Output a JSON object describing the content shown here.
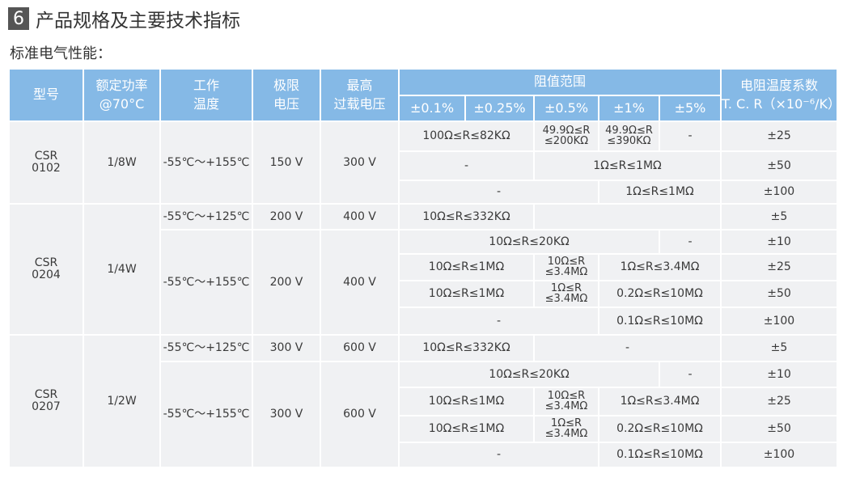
{
  "title": {
    "number": "6",
    "text": "产品规格及主要技术指标"
  },
  "subtitle": "标准电气性能：",
  "header": {
    "model": "型号",
    "power_1": "额定功率",
    "power_2": "@70°C",
    "temp_1": "工作",
    "temp_2": "温度",
    "limit_1": "极限",
    "limit_2": "电压",
    "overload_1": "最高",
    "overload_2": "过载电压",
    "range": "阻值范围",
    "tolerances": [
      "±0.1%",
      "±0.25%",
      "±0.5%",
      "±1%",
      "±5%"
    ],
    "tcr_1": "电阻温度系数",
    "tcr_2": "T. C. R（×10⁻⁶/K）"
  },
  "groups": [
    {
      "model": "CSR\n0102",
      "power": "1/8W",
      "subgroups": [
        {
          "temp": "-55℃～+155℃",
          "limit_v": "150 V",
          "overload_v": "300 V",
          "rows": [
            {
              "tcr": "±25",
              "cells": [
                {
                  "t": "100Ω≤R≤82KΩ",
                  "s": 2
                },
                {
                  "t": "49.9Ω≤R\n≤200KΩ",
                  "s": 1
                },
                {
                  "t": "49.9Ω≤R\n≤390KΩ",
                  "s": 1
                },
                {
                  "t": "-",
                  "s": 1
                }
              ]
            },
            {
              "tcr": "±50",
              "cells": [
                {
                  "t": "-",
                  "s": 2
                },
                {
                  "t": "1Ω≤R≤1MΩ",
                  "s": 3
                }
              ]
            },
            {
              "tcr": "±100",
              "cells": [
                {
                  "t": "-",
                  "s": 3
                },
                {
                  "t": "1Ω≤R≤1MΩ",
                  "s": 2
                }
              ]
            }
          ]
        }
      ]
    },
    {
      "model": "CSR\n0204",
      "power": "1/4W",
      "subgroups": [
        {
          "temp": "-55℃～+125℃",
          "limit_v": "200 V",
          "overload_v": "400 V",
          "rows": [
            {
              "tcr": "±5",
              "cells": [
                {
                  "t": "10Ω≤R≤332KΩ",
                  "s": 2
                },
                {
                  "t": "",
                  "s": 3
                }
              ]
            }
          ]
        },
        {
          "temp": "-55℃～+155℃",
          "limit_v": "200 V",
          "overload_v": "400 V",
          "rows": [
            {
              "tcr": "±10",
              "cells": [
                {
                  "t": "10Ω≤R≤20KΩ",
                  "s": 4
                },
                {
                  "t": "-",
                  "s": 1
                }
              ]
            },
            {
              "tcr": "±25",
              "cells": [
                {
                  "t": "10Ω≤R≤1MΩ",
                  "s": 2
                },
                {
                  "t": "10Ω≤R\n≤3.4MΩ",
                  "s": 1
                },
                {
                  "t": "1Ω≤R≤3.4MΩ",
                  "s": 2
                }
              ]
            },
            {
              "tcr": "±50",
              "cells": [
                {
                  "t": "10Ω≤R≤1MΩ",
                  "s": 2
                },
                {
                  "t": "1Ω≤R\n≤3.4MΩ",
                  "s": 1
                },
                {
                  "t": "0.2Ω≤R≤10MΩ",
                  "s": 2
                }
              ]
            },
            {
              "tcr": "±100",
              "cells": [
                {
                  "t": "-",
                  "s": 3
                },
                {
                  "t": "0.1Ω≤R≤10MΩ",
                  "s": 2
                }
              ]
            }
          ]
        }
      ]
    },
    {
      "model": "CSR\n0207",
      "power": "1/2W",
      "subgroups": [
        {
          "temp": "-55℃～+125℃",
          "limit_v": "300 V",
          "overload_v": "600 V",
          "rows": [
            {
              "tcr": "±5",
              "cells": [
                {
                  "t": "10Ω≤R≤332KΩ",
                  "s": 2
                },
                {
                  "t": "-",
                  "s": 3
                }
              ]
            }
          ]
        },
        {
          "temp": "-55℃～+155℃",
          "limit_v": "300 V",
          "overload_v": "600 V",
          "rows": [
            {
              "tcr": "±10",
              "cells": [
                {
                  "t": "10Ω≤R≤20KΩ",
                  "s": 4
                },
                {
                  "t": "-",
                  "s": 1
                }
              ]
            },
            {
              "tcr": "±25",
              "cells": [
                {
                  "t": "10Ω≤R≤1MΩ",
                  "s": 2
                },
                {
                  "t": "10Ω≤R\n≤3.4MΩ",
                  "s": 1
                },
                {
                  "t": "1Ω≤R≤3.4MΩ",
                  "s": 2
                }
              ]
            },
            {
              "tcr": "±50",
              "cells": [
                {
                  "t": "10Ω≤R≤1MΩ",
                  "s": 2
                },
                {
                  "t": "1Ω≤R\n≤3.4MΩ",
                  "s": 1
                },
                {
                  "t": "0.2Ω≤R≤10MΩ",
                  "s": 2
                }
              ]
            },
            {
              "tcr": "±100",
              "cells": [
                {
                  "t": "-",
                  "s": 3
                },
                {
                  "t": "0.1Ω≤R≤10MΩ",
                  "s": 2
                }
              ]
            }
          ]
        }
      ]
    }
  ]
}
